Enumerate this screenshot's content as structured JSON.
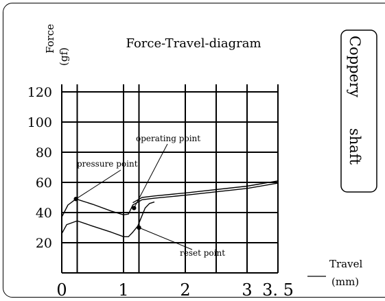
{
  "chart_data": {
    "type": "line",
    "title": "Force-Travel-diagram",
    "ylabel": [
      "Force",
      "(gf)"
    ],
    "xlabel": [
      "Travel",
      "(mm)"
    ],
    "xlim": [
      0,
      3.5
    ],
    "ylim": [
      0,
      125
    ],
    "grid": true,
    "x_ticks": [
      {
        "value": 0,
        "label": "0"
      },
      {
        "value": 1,
        "label": "1"
      },
      {
        "value": 2,
        "label": "2"
      },
      {
        "value": 3,
        "label": "3"
      },
      {
        "value": 3.5,
        "label": "3. 5"
      }
    ],
    "y_ticks": [
      {
        "value": 20,
        "label": "20"
      },
      {
        "value": 40,
        "label": "40"
      },
      {
        "value": 60,
        "label": "60"
      },
      {
        "value": 80,
        "label": "80"
      },
      {
        "value": 100,
        "label": "100"
      },
      {
        "value": 120,
        "label": "120"
      }
    ],
    "grid_x": [
      0.25,
      1,
      1.25,
      2,
      2.5,
      3,
      3.5
    ],
    "grid_y": [
      0,
      20,
      40,
      60,
      80,
      100,
      120
    ],
    "series": [
      {
        "role": "press",
        "x": [
          0,
          0.1,
          0.23,
          0.5,
          0.8,
          1.0,
          1.08,
          1.15,
          1.3,
          1.5,
          2.0,
          3.0,
          3.5
        ],
        "y": [
          37,
          45,
          49,
          45.5,
          41,
          38.5,
          39,
          45,
          48.5,
          49.5,
          51.5,
          56,
          59.5
        ]
      },
      {
        "role": "press-upper",
        "x": [
          1.15,
          1.3,
          1.5,
          2.0,
          3.0,
          3.5
        ],
        "y": [
          46.5,
          50,
          51,
          53,
          57.5,
          61
        ]
      },
      {
        "role": "reset",
        "x": [
          0,
          0.08,
          0.25,
          0.5,
          0.8,
          1.0,
          1.08,
          1.15,
          1.23,
          1.3,
          1.35,
          1.42,
          1.5
        ],
        "y": [
          26,
          32,
          34.5,
          31,
          27,
          24,
          24,
          27,
          31,
          38,
          43,
          46,
          47
        ]
      }
    ],
    "annotations": [
      {
        "text": "pressure point",
        "x": 0.23,
        "y": 49
      },
      {
        "text": "operating point",
        "x": 1.17,
        "y": 43
      },
      {
        "text": "reset point",
        "x": 1.25,
        "y": 30
      }
    ],
    "tag_lines": [
      "Coppery",
      "shaft"
    ]
  }
}
